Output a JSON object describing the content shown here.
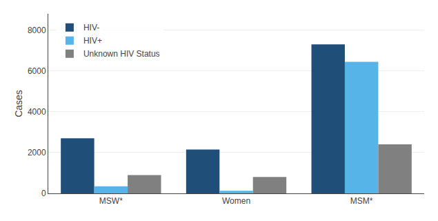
{
  "chart_data": {
    "type": "bar",
    "categories": [
      "MSW*",
      "Women",
      "MSM*"
    ],
    "series": [
      {
        "name": "HIV-",
        "color": "#1f4e79",
        "values": [
          2700,
          2150,
          7300
        ]
      },
      {
        "name": "HIV+",
        "color": "#56b4e9",
        "values": [
          350,
          130,
          6450
        ]
      },
      {
        "name": "Unknown HIV Status",
        "color": "#808080",
        "values": [
          900,
          800,
          2400
        ]
      }
    ],
    "ylabel": "Cases",
    "ylim": [
      0,
      8800
    ],
    "yticks": [
      0,
      2000,
      4000,
      6000,
      8000
    ],
    "grid": true,
    "legend": "upper left"
  }
}
